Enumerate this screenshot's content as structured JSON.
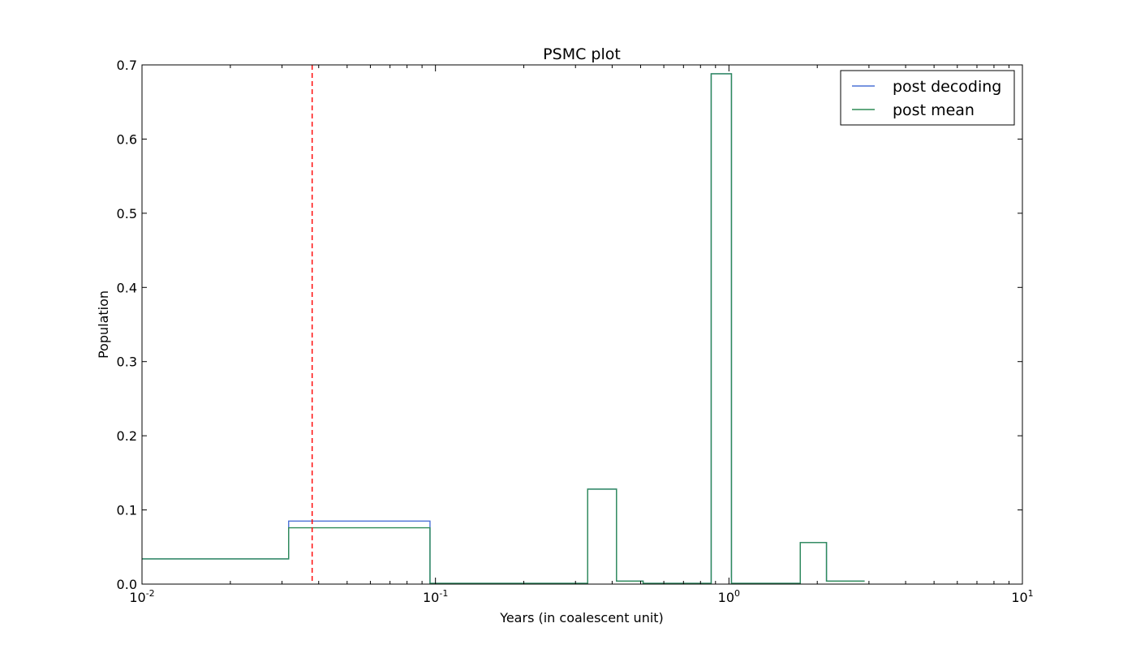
{
  "chart_data": {
    "type": "line",
    "title": "PSMC plot",
    "xlabel": "Years (in coalescent unit)",
    "ylabel": "Population",
    "xscale": "log",
    "xlim": [
      0.01,
      10
    ],
    "ylim": [
      0,
      0.7
    ],
    "xticks": [
      {
        "base": "10",
        "exp": "-2"
      },
      {
        "base": "10",
        "exp": "-1"
      },
      {
        "base": "10",
        "exp": "0"
      },
      {
        "base": "10",
        "exp": "1"
      }
    ],
    "yticks": [
      "0.0",
      "0.1",
      "0.2",
      "0.3",
      "0.4",
      "0.5",
      "0.6",
      "0.7"
    ],
    "grid": false,
    "legend_position": "top-right",
    "step": "post",
    "series": [
      {
        "name": "post decoding",
        "color": "#4c72d6",
        "x": [
          0.01,
          0.0316,
          0.0958,
          0.33,
          0.414,
          0.51,
          0.87,
          1.02,
          1.75,
          2.15,
          2.9
        ],
        "values": [
          0.034,
          0.085,
          0.001,
          0.128,
          0.004,
          0.001,
          0.688,
          0.001,
          0.056,
          0.004,
          0.004
        ]
      },
      {
        "name": "post mean",
        "color": "#2e8b57",
        "x": [
          0.01,
          0.0316,
          0.0958,
          0.33,
          0.414,
          0.51,
          0.87,
          1.02,
          1.75,
          2.15,
          2.9
        ],
        "values": [
          0.034,
          0.076,
          0.001,
          0.128,
          0.004,
          0.001,
          0.688,
          0.001,
          0.056,
          0.004,
          0.004
        ]
      }
    ],
    "vline": {
      "x": 0.038,
      "color": "#ff0000",
      "style": "dashed"
    }
  }
}
